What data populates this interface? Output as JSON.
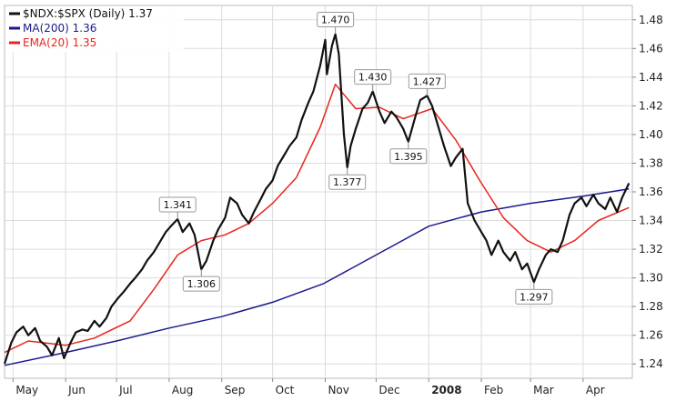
{
  "chart_data": {
    "type": "line",
    "title": "",
    "xlabel": "",
    "ylabel": "",
    "ylim": [
      1.23,
      1.49
    ],
    "y_ticks": [
      1.24,
      1.26,
      1.28,
      1.3,
      1.32,
      1.34,
      1.36,
      1.38,
      1.4,
      1.42,
      1.44,
      1.46,
      1.48
    ],
    "y_tick_labels": [
      "1.24",
      "1.26",
      "1.28",
      "1.30",
      "1.32",
      "1.34",
      "1.36",
      "1.38",
      "1.40",
      "1.42",
      "1.44",
      "1.46",
      "1.48"
    ],
    "x_range": [
      "2007-04-26",
      "2008-04-30"
    ],
    "x_ticks": [
      {
        "date": "2007-05-01",
        "label": "May",
        "bold": false
      },
      {
        "date": "2007-06-01",
        "label": "Jun",
        "bold": false
      },
      {
        "date": "2007-07-01",
        "label": "Jul",
        "bold": false
      },
      {
        "date": "2007-08-01",
        "label": "Aug",
        "bold": false
      },
      {
        "date": "2007-09-01",
        "label": "Sep",
        "bold": false
      },
      {
        "date": "2007-10-01",
        "label": "Oct",
        "bold": false
      },
      {
        "date": "2007-11-01",
        "label": "Nov",
        "bold": false
      },
      {
        "date": "2007-12-01",
        "label": "Dec",
        "bold": false
      },
      {
        "date": "2008-01-01",
        "label": "2008",
        "bold": true
      },
      {
        "date": "2008-02-01",
        "label": "Feb",
        "bold": false
      },
      {
        "date": "2008-03-01",
        "label": "Mar",
        "bold": false
      },
      {
        "date": "2008-04-01",
        "label": "Apr",
        "bold": false
      }
    ],
    "grid": true,
    "legend_position": "top-left",
    "series": [
      {
        "name": "$NDX:$SPX (Daily) 1.37",
        "color": "#111111",
        "points": [
          [
            "2007-04-26",
            1.24
          ],
          [
            "2007-04-30",
            1.255
          ],
          [
            "2007-05-03",
            1.262
          ],
          [
            "2007-05-07",
            1.266
          ],
          [
            "2007-05-10",
            1.26
          ],
          [
            "2007-05-14",
            1.265
          ],
          [
            "2007-05-17",
            1.256
          ],
          [
            "2007-05-21",
            1.252
          ],
          [
            "2007-05-24",
            1.246
          ],
          [
            "2007-05-28",
            1.258
          ],
          [
            "2007-05-31",
            1.244
          ],
          [
            "2007-06-04",
            1.255
          ],
          [
            "2007-06-07",
            1.262
          ],
          [
            "2007-06-11",
            1.264
          ],
          [
            "2007-06-14",
            1.263
          ],
          [
            "2007-06-18",
            1.27
          ],
          [
            "2007-06-21",
            1.266
          ],
          [
            "2007-06-25",
            1.272
          ],
          [
            "2007-06-28",
            1.28
          ],
          [
            "2007-07-02",
            1.286
          ],
          [
            "2007-07-05",
            1.29
          ],
          [
            "2007-07-09",
            1.296
          ],
          [
            "2007-07-12",
            1.3
          ],
          [
            "2007-07-16",
            1.306
          ],
          [
            "2007-07-19",
            1.312
          ],
          [
            "2007-07-23",
            1.318
          ],
          [
            "2007-07-26",
            1.324
          ],
          [
            "2007-07-30",
            1.332
          ],
          [
            "2007-08-02",
            1.336
          ],
          [
            "2007-08-06",
            1.341
          ],
          [
            "2007-08-09",
            1.332
          ],
          [
            "2007-08-13",
            1.338
          ],
          [
            "2007-08-16",
            1.33
          ],
          [
            "2007-08-20",
            1.306
          ],
          [
            "2007-08-23",
            1.312
          ],
          [
            "2007-08-27",
            1.326
          ],
          [
            "2007-08-30",
            1.334
          ],
          [
            "2007-09-03",
            1.342
          ],
          [
            "2007-09-06",
            1.356
          ],
          [
            "2007-09-10",
            1.352
          ],
          [
            "2007-09-13",
            1.344
          ],
          [
            "2007-09-17",
            1.338
          ],
          [
            "2007-09-20",
            1.346
          ],
          [
            "2007-09-24",
            1.355
          ],
          [
            "2007-09-27",
            1.362
          ],
          [
            "2007-10-01",
            1.368
          ],
          [
            "2007-10-04",
            1.378
          ],
          [
            "2007-10-08",
            1.386
          ],
          [
            "2007-10-11",
            1.392
          ],
          [
            "2007-10-15",
            1.398
          ],
          [
            "2007-10-18",
            1.41
          ],
          [
            "2007-10-22",
            1.422
          ],
          [
            "2007-10-25",
            1.43
          ],
          [
            "2007-10-29",
            1.448
          ],
          [
            "2007-11-01",
            1.466
          ],
          [
            "2007-11-02",
            1.442
          ],
          [
            "2007-11-05",
            1.462
          ],
          [
            "2007-11-07",
            1.47
          ],
          [
            "2007-11-09",
            1.456
          ],
          [
            "2007-11-12",
            1.4
          ],
          [
            "2007-11-14",
            1.377
          ],
          [
            "2007-11-16",
            1.392
          ],
          [
            "2007-11-19",
            1.404
          ],
          [
            "2007-11-23",
            1.418
          ],
          [
            "2007-11-26",
            1.422
          ],
          [
            "2007-11-29",
            1.43
          ],
          [
            "2007-12-03",
            1.416
          ],
          [
            "2007-12-06",
            1.408
          ],
          [
            "2007-12-10",
            1.416
          ],
          [
            "2007-12-13",
            1.412
          ],
          [
            "2007-12-17",
            1.404
          ],
          [
            "2007-12-20",
            1.395
          ],
          [
            "2007-12-24",
            1.412
          ],
          [
            "2007-12-27",
            1.424
          ],
          [
            "2007-12-31",
            1.427
          ],
          [
            "2008-01-03",
            1.42
          ],
          [
            "2008-01-07",
            1.404
          ],
          [
            "2008-01-10",
            1.392
          ],
          [
            "2008-01-14",
            1.378
          ],
          [
            "2008-01-17",
            1.384
          ],
          [
            "2008-01-21",
            1.39
          ],
          [
            "2008-01-24",
            1.352
          ],
          [
            "2008-01-28",
            1.34
          ],
          [
            "2008-01-31",
            1.334
          ],
          [
            "2008-02-04",
            1.326
          ],
          [
            "2008-02-07",
            1.316
          ],
          [
            "2008-02-11",
            1.326
          ],
          [
            "2008-02-14",
            1.318
          ],
          [
            "2008-02-18",
            1.312
          ],
          [
            "2008-02-21",
            1.318
          ],
          [
            "2008-02-25",
            1.306
          ],
          [
            "2008-02-28",
            1.31
          ],
          [
            "2008-03-03",
            1.297
          ],
          [
            "2008-03-06",
            1.306
          ],
          [
            "2008-03-10",
            1.316
          ],
          [
            "2008-03-13",
            1.32
          ],
          [
            "2008-03-17",
            1.318
          ],
          [
            "2008-03-20",
            1.326
          ],
          [
            "2008-03-24",
            1.344
          ],
          [
            "2008-03-27",
            1.352
          ],
          [
            "2008-03-31",
            1.356
          ],
          [
            "2008-04-03",
            1.35
          ],
          [
            "2008-04-07",
            1.358
          ],
          [
            "2008-04-10",
            1.352
          ],
          [
            "2008-04-14",
            1.348
          ],
          [
            "2008-04-17",
            1.356
          ],
          [
            "2008-04-21",
            1.346
          ],
          [
            "2008-04-24",
            1.356
          ],
          [
            "2008-04-28",
            1.366
          ]
        ]
      },
      {
        "name": "MA(200) 1.36",
        "color": "#1a1a8c",
        "points": [
          [
            "2007-04-26",
            1.239
          ],
          [
            "2007-06-01",
            1.248
          ],
          [
            "2007-07-01",
            1.256
          ],
          [
            "2007-08-01",
            1.265
          ],
          [
            "2007-09-01",
            1.273
          ],
          [
            "2007-10-01",
            1.283
          ],
          [
            "2007-10-31",
            1.296
          ],
          [
            "2007-12-01",
            1.316
          ],
          [
            "2008-01-01",
            1.336
          ],
          [
            "2008-02-01",
            1.346
          ],
          [
            "2008-03-01",
            1.352
          ],
          [
            "2008-04-01",
            1.357
          ],
          [
            "2008-04-28",
            1.362
          ]
        ]
      },
      {
        "name": "EMA(20) 1.35",
        "color": "#e8241e",
        "points": [
          [
            "2007-04-26",
            1.248
          ],
          [
            "2007-05-10",
            1.256
          ],
          [
            "2007-06-01",
            1.253
          ],
          [
            "2007-06-18",
            1.258
          ],
          [
            "2007-07-09",
            1.27
          ],
          [
            "2007-07-23",
            1.292
          ],
          [
            "2007-08-06",
            1.316
          ],
          [
            "2007-08-20",
            1.326
          ],
          [
            "2007-09-03",
            1.33
          ],
          [
            "2007-09-17",
            1.338
          ],
          [
            "2007-10-01",
            1.352
          ],
          [
            "2007-10-15",
            1.37
          ],
          [
            "2007-10-29",
            1.405
          ],
          [
            "2007-11-07",
            1.435
          ],
          [
            "2007-11-19",
            1.418
          ],
          [
            "2007-12-03",
            1.419
          ],
          [
            "2007-12-17",
            1.411
          ],
          [
            "2008-01-03",
            1.418
          ],
          [
            "2008-01-17",
            1.396
          ],
          [
            "2008-01-31",
            1.368
          ],
          [
            "2008-02-14",
            1.342
          ],
          [
            "2008-02-28",
            1.326
          ],
          [
            "2008-03-13",
            1.318
          ],
          [
            "2008-03-27",
            1.326
          ],
          [
            "2008-04-10",
            1.34
          ],
          [
            "2008-04-28",
            1.349
          ]
        ]
      }
    ],
    "annotations": [
      {
        "date": "2007-11-07",
        "value": 1.47,
        "label": "1.470",
        "placement": "above"
      },
      {
        "date": "2007-11-29",
        "value": 1.43,
        "label": "1.430",
        "placement": "above"
      },
      {
        "date": "2007-12-31",
        "value": 1.427,
        "label": "1.427",
        "placement": "above"
      },
      {
        "date": "2007-08-06",
        "value": 1.341,
        "label": "1.341",
        "placement": "above"
      },
      {
        "date": "2007-11-14",
        "value": 1.377,
        "label": "1.377",
        "placement": "below"
      },
      {
        "date": "2007-12-20",
        "value": 1.395,
        "label": "1.395",
        "placement": "below"
      },
      {
        "date": "2007-08-20",
        "value": 1.306,
        "label": "1.306",
        "placement": "below"
      },
      {
        "date": "2008-03-03",
        "value": 1.297,
        "label": "1.297",
        "placement": "below"
      }
    ]
  }
}
